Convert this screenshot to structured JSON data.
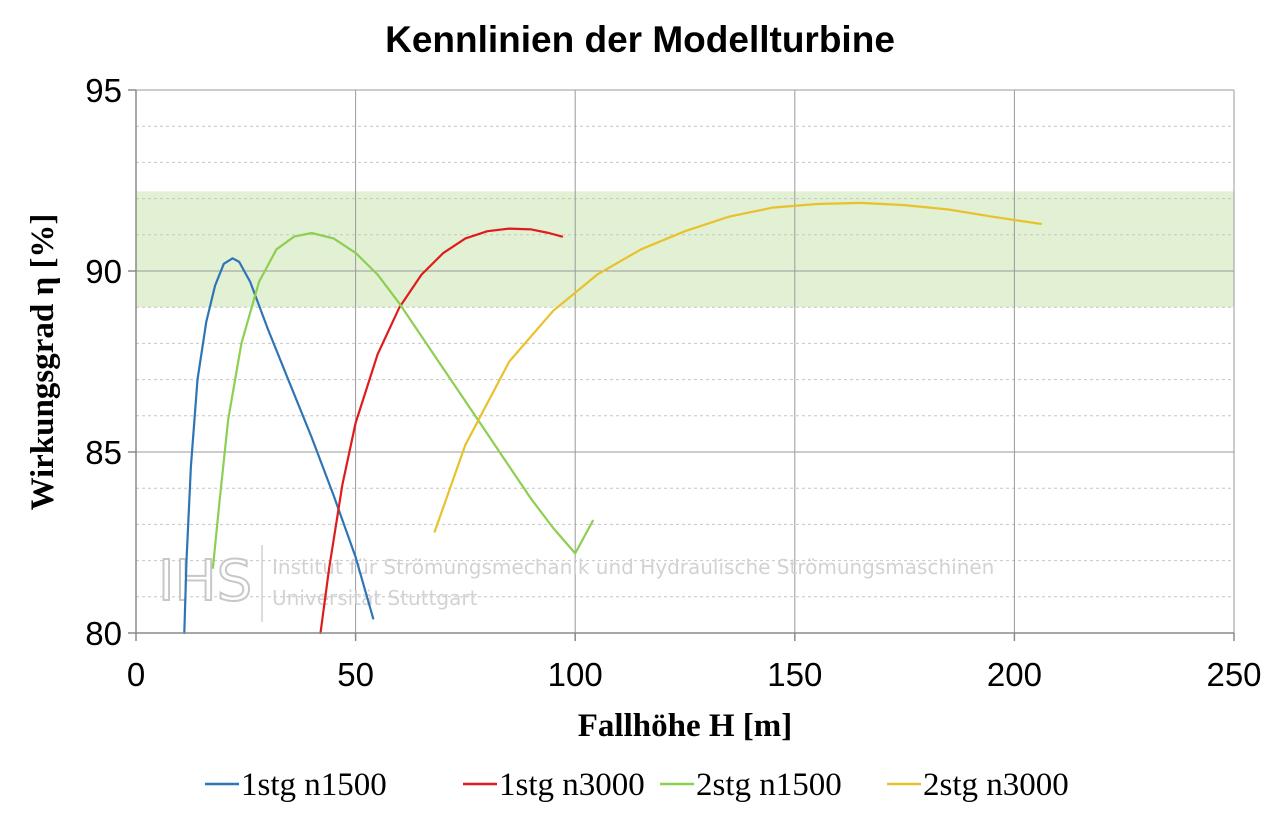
{
  "chart_data": {
    "type": "line",
    "title": "Kennlinien der Modellturbine",
    "xlabel": "Fallhöhe H [m]",
    "ylabel": "Wirkungsgrad η [%]",
    "xlim": [
      0,
      250
    ],
    "ylim": [
      80,
      95
    ],
    "xticks": [
      0,
      50,
      100,
      150,
      200,
      250
    ],
    "yticks": [
      80,
      85,
      90,
      95
    ],
    "grid": true,
    "legend_position": "bottom",
    "highlight_band": {
      "y_from": 89,
      "y_to": 92.2,
      "color": "#e2f0d4"
    },
    "series": [
      {
        "name": "1stg n1500",
        "color": "#2e75b6",
        "points": [
          [
            11,
            80
          ],
          [
            11.5,
            82
          ],
          [
            12.5,
            84.6
          ],
          [
            14,
            87
          ],
          [
            16,
            88.6
          ],
          [
            18,
            89.6
          ],
          [
            20,
            90.2
          ],
          [
            22,
            90.35
          ],
          [
            23.5,
            90.25
          ],
          [
            26,
            89.7
          ],
          [
            30,
            88.4
          ],
          [
            35,
            86.9
          ],
          [
            40,
            85.4
          ],
          [
            45,
            83.8
          ],
          [
            50,
            82.1
          ],
          [
            54,
            80.4
          ]
        ]
      },
      {
        "name": "1stg n3000",
        "color": "#e01b1b",
        "points": [
          [
            42,
            80
          ],
          [
            44,
            81.8
          ],
          [
            47,
            84.1
          ],
          [
            50,
            85.8
          ],
          [
            55,
            87.7
          ],
          [
            60,
            89
          ],
          [
            65,
            89.9
          ],
          [
            70,
            90.5
          ],
          [
            75,
            90.9
          ],
          [
            80,
            91.1
          ],
          [
            85,
            91.17
          ],
          [
            90,
            91.15
          ],
          [
            94,
            91.05
          ],
          [
            97,
            90.95
          ]
        ]
      },
      {
        "name": "2stg n1500",
        "color": "#8dcf50",
        "points": [
          [
            17.5,
            81.8
          ],
          [
            19,
            83.6
          ],
          [
            21,
            85.9
          ],
          [
            24,
            88
          ],
          [
            28,
            89.7
          ],
          [
            32,
            90.6
          ],
          [
            36,
            90.95
          ],
          [
            40,
            91.05
          ],
          [
            45,
            90.9
          ],
          [
            50,
            90.5
          ],
          [
            55,
            89.9
          ],
          [
            60,
            89.1
          ],
          [
            65,
            88.2
          ],
          [
            70,
            87.3
          ],
          [
            75,
            86.4
          ],
          [
            80,
            85.5
          ],
          [
            85,
            84.6
          ],
          [
            90,
            83.7
          ],
          [
            95,
            82.9
          ],
          [
            100,
            82.2
          ],
          [
            104,
            83.1
          ]
        ]
      },
      {
        "name": "2stg n3000",
        "color": "#e8c22c",
        "points": [
          [
            68,
            82.8
          ],
          [
            75,
            85.2
          ],
          [
            85,
            87.5
          ],
          [
            95,
            88.9
          ],
          [
            105,
            89.9
          ],
          [
            115,
            90.6
          ],
          [
            125,
            91.1
          ],
          [
            135,
            91.5
          ],
          [
            145,
            91.75
          ],
          [
            155,
            91.85
          ],
          [
            165,
            91.88
          ],
          [
            175,
            91.82
          ],
          [
            185,
            91.7
          ],
          [
            195,
            91.5
          ],
          [
            206,
            91.3
          ]
        ]
      }
    ]
  },
  "watermark": {
    "logo": "IHS",
    "line1": "Institut für Strömungsmechanik und Hydraulische Strömungsmaschinen",
    "line2": "Universität Stuttgart"
  }
}
